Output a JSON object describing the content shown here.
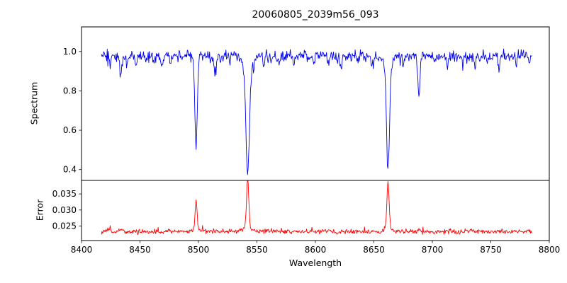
{
  "chart_data": {
    "type": "line",
    "title": "20060805_2039m56_093",
    "xlabel": "Wavelength",
    "grid": false,
    "legend": null,
    "xlim": [
      8400,
      8800
    ],
    "x_ticks": [
      8400,
      8450,
      8500,
      8550,
      8600,
      8650,
      8700,
      8750,
      8800
    ],
    "x_tick_labels": [
      "8400",
      "8450",
      "8500",
      "8550",
      "8600",
      "8650",
      "8700",
      "8750",
      "8800"
    ],
    "x_start": 8417,
    "x_end": 8785,
    "x_step": 0.5,
    "seed": 42,
    "subplots": [
      {
        "ylabel": "Spectrum",
        "color": "#0000ee",
        "ylim": [
          0.345,
          1.125
        ],
        "y_ticks": [
          0.4,
          0.6,
          0.8,
          1.0
        ],
        "y_tick_labels": [
          "0.4",
          "0.6",
          "0.8",
          "1.0"
        ],
        "continuum": 0.978,
        "noise_sigma": 0.013,
        "absorption_lines": [
          {
            "c": 8424.5,
            "d": 0.045,
            "s": 0.7
          },
          {
            "c": 8433.5,
            "d": 0.1,
            "s": 0.9
          },
          {
            "c": 8439.0,
            "d": 0.04,
            "s": 0.6
          },
          {
            "c": 8446.5,
            "d": 0.05,
            "s": 0.7
          },
          {
            "c": 8455.0,
            "d": 0.035,
            "s": 0.6
          },
          {
            "c": 8462.0,
            "d": 0.05,
            "s": 0.7
          },
          {
            "c": 8468.5,
            "d": 0.06,
            "s": 0.8
          },
          {
            "c": 8476.0,
            "d": 0.04,
            "s": 0.6
          },
          {
            "c": 8498.0,
            "d": 0.448,
            "s": 1.1
          },
          {
            "c": 8514.2,
            "d": 0.098,
            "s": 0.9
          },
          {
            "c": 8519.0,
            "d": 0.045,
            "s": 0.6
          },
          {
            "c": 8527.0,
            "d": 0.038,
            "s": 0.6
          },
          {
            "c": 8542.1,
            "d": 0.55,
            "s": 1.5
          },
          {
            "c": 8542.1,
            "d": 0.05,
            "s": 4.0
          },
          {
            "c": 8556.0,
            "d": 0.04,
            "s": 0.6
          },
          {
            "c": 8569.0,
            "d": 0.035,
            "s": 0.6
          },
          {
            "c": 8582.0,
            "d": 0.048,
            "s": 0.7
          },
          {
            "c": 8598.5,
            "d": 0.055,
            "s": 0.7
          },
          {
            "c": 8611.0,
            "d": 0.045,
            "s": 0.6
          },
          {
            "c": 8621.8,
            "d": 0.065,
            "s": 0.8
          },
          {
            "c": 8636.0,
            "d": 0.04,
            "s": 0.6
          },
          {
            "c": 8648.0,
            "d": 0.045,
            "s": 0.6
          },
          {
            "c": 8662.1,
            "d": 0.533,
            "s": 1.3
          },
          {
            "c": 8662.1,
            "d": 0.045,
            "s": 3.5
          },
          {
            "c": 8674.8,
            "d": 0.06,
            "s": 0.7
          },
          {
            "c": 8688.6,
            "d": 0.208,
            "s": 0.9
          },
          {
            "c": 8702.0,
            "d": 0.04,
            "s": 0.6
          },
          {
            "c": 8713.0,
            "d": 0.05,
            "s": 0.7
          },
          {
            "c": 8726.0,
            "d": 0.04,
            "s": 0.6
          },
          {
            "c": 8736.5,
            "d": 0.055,
            "s": 0.7
          },
          {
            "c": 8747.0,
            "d": 0.04,
            "s": 0.6
          },
          {
            "c": 8757.0,
            "d": 0.05,
            "s": 0.7
          },
          {
            "c": 8772.0,
            "d": 0.045,
            "s": 0.6
          },
          {
            "c": 8783.0,
            "d": 0.04,
            "s": 0.6
          }
        ]
      },
      {
        "ylabel": "Error",
        "color": "#ff0000",
        "ylim": [
          0.0205,
          0.0392
        ],
        "y_ticks": [
          0.025,
          0.03,
          0.035
        ],
        "y_tick_labels": [
          "0.025",
          "0.030",
          "0.035"
        ],
        "baseline": 0.0233,
        "noise_sigma": 0.00035,
        "spikes": [
          {
            "c": 8424.5,
            "h": 0.0012,
            "s": 0.7
          },
          {
            "c": 8433.5,
            "h": 0.001,
            "s": 0.8
          },
          {
            "c": 8498.0,
            "h": 0.0085,
            "s": 0.8
          },
          {
            "c": 8498.0,
            "h": 0.001,
            "s": 2.2
          },
          {
            "c": 8542.1,
            "h": 0.0146,
            "s": 0.9
          },
          {
            "c": 8542.1,
            "h": 0.002,
            "s": 2.6
          },
          {
            "c": 8662.1,
            "h": 0.0138,
            "s": 0.9
          },
          {
            "c": 8662.1,
            "h": 0.0018,
            "s": 2.6
          },
          {
            "c": 8688.6,
            "h": 0.0012,
            "s": 0.8
          }
        ]
      }
    ]
  }
}
